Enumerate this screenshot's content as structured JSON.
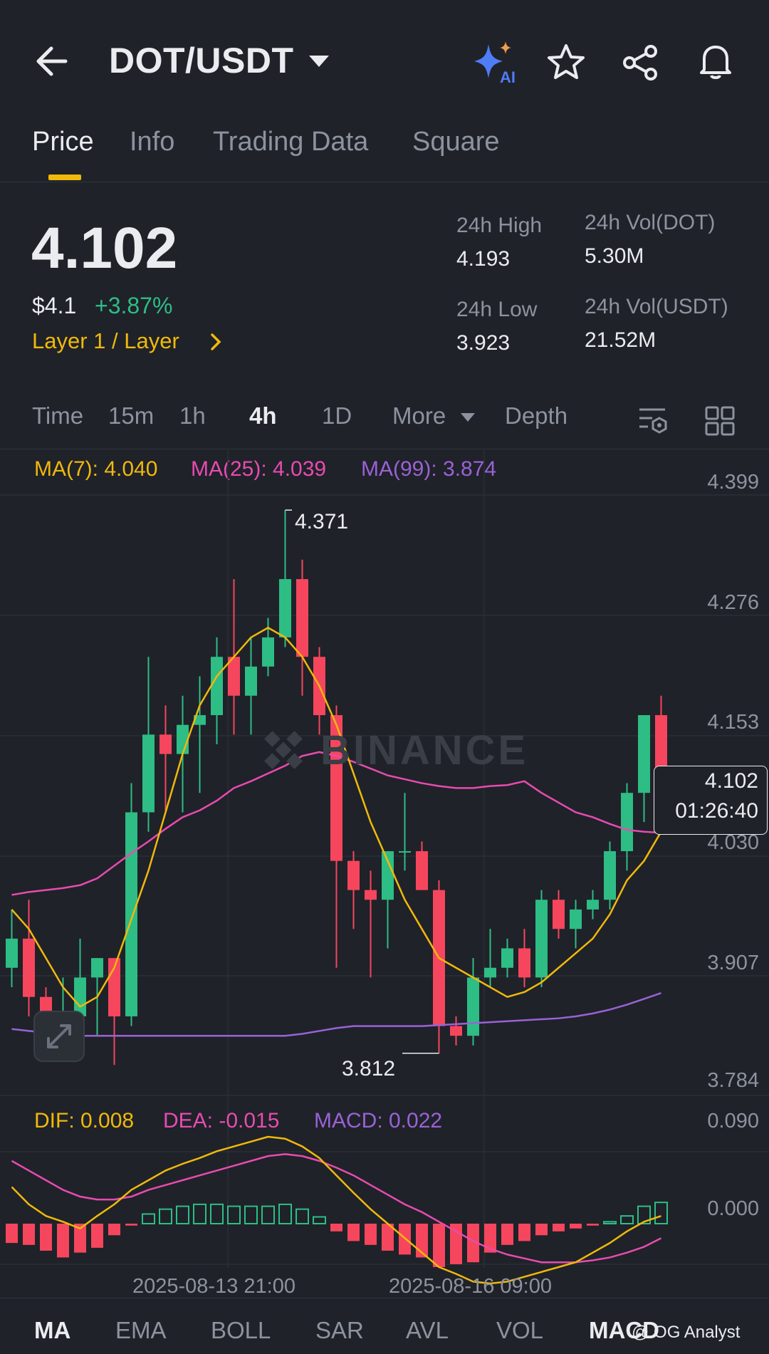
{
  "header": {
    "pair": "DOT/USDT",
    "icons": [
      "back-arrow-icon",
      "chevron-down-icon",
      "ai-sparkle-icon",
      "star-icon",
      "share-icon",
      "bell-icon"
    ]
  },
  "tabs": [
    {
      "label": "Price",
      "active": true
    },
    {
      "label": "Info",
      "active": false
    },
    {
      "label": "Trading Data",
      "active": false
    },
    {
      "label": "Square",
      "active": false
    }
  ],
  "ticker": {
    "last_price": "4.102",
    "usd_price": "$4.1",
    "change": "+3.87%",
    "category": "Layer 1 / Layer",
    "high_label": "24h High",
    "high": "4.193",
    "low_label": "24h Low",
    "low": "3.923",
    "vol_base_label": "24h Vol(DOT)",
    "vol_base": "5.30M",
    "vol_quote_label": "24h Vol(USDT)",
    "vol_quote": "21.52M"
  },
  "intervals": {
    "items": [
      "Time",
      "15m",
      "1h",
      "4h",
      "1D",
      "More",
      "Depth"
    ],
    "active": "4h"
  },
  "indicators": {
    "ma7": "MA(7): 4.040",
    "ma25": "MA(25): 4.039",
    "ma99": "MA(99): 3.874",
    "dif": "DIF: 0.008",
    "dea": "DEA: -0.015",
    "macd": "MACD: 0.022"
  },
  "chart_data": {
    "type": "candlestick",
    "price_axis": [
      "4.399",
      "4.276",
      "4.153",
      "4.030",
      "3.907",
      "3.784"
    ],
    "macd_axis": [
      "0.090",
      "0.000"
    ],
    "x_labels": [
      "2025-08-13 21:00",
      "2025-08-16 09:00"
    ],
    "high_marker": "4.371",
    "low_marker": "3.812",
    "current_price": "4.102",
    "countdown": "01:26:40",
    "watermark": "BINANCE",
    "colors": {
      "up": "#2ebd85",
      "down": "#f6465d",
      "ma7": "#f0b90b",
      "ma25": "#e84bb0",
      "ma99": "#9a62d6"
    },
    "candles": [
      {
        "o": 3.9,
        "h": 3.96,
        "l": 3.88,
        "c": 3.93
      },
      {
        "o": 3.93,
        "h": 3.97,
        "l": 3.85,
        "c": 3.87
      },
      {
        "o": 3.87,
        "h": 3.88,
        "l": 3.81,
        "c": 3.83
      },
      {
        "o": 3.83,
        "h": 3.89,
        "l": 3.81,
        "c": 3.85
      },
      {
        "o": 3.85,
        "h": 3.93,
        "l": 3.82,
        "c": 3.89
      },
      {
        "o": 3.89,
        "h": 3.91,
        "l": 3.83,
        "c": 3.91
      },
      {
        "o": 3.91,
        "h": 3.91,
        "l": 3.8,
        "c": 3.85
      },
      {
        "o": 3.85,
        "h": 4.09,
        "l": 3.84,
        "c": 4.06
      },
      {
        "o": 4.06,
        "h": 4.22,
        "l": 4.04,
        "c": 4.14
      },
      {
        "o": 4.14,
        "h": 4.17,
        "l": 4.06,
        "c": 4.12
      },
      {
        "o": 4.12,
        "h": 4.18,
        "l": 4.06,
        "c": 4.15
      },
      {
        "o": 4.15,
        "h": 4.2,
        "l": 4.08,
        "c": 4.16
      },
      {
        "o": 4.16,
        "h": 4.24,
        "l": 4.13,
        "c": 4.22
      },
      {
        "o": 4.22,
        "h": 4.3,
        "l": 4.14,
        "c": 4.18
      },
      {
        "o": 4.18,
        "h": 4.24,
        "l": 4.14,
        "c": 4.21
      },
      {
        "o": 4.21,
        "h": 4.26,
        "l": 4.2,
        "c": 4.24
      },
      {
        "o": 4.24,
        "h": 4.371,
        "l": 4.23,
        "c": 4.3
      },
      {
        "o": 4.3,
        "h": 4.32,
        "l": 4.18,
        "c": 4.22
      },
      {
        "o": 4.22,
        "h": 4.23,
        "l": 4.14,
        "c": 4.16
      },
      {
        "o": 4.16,
        "h": 4.17,
        "l": 3.9,
        "c": 4.01
      },
      {
        "o": 4.01,
        "h": 4.02,
        "l": 3.94,
        "c": 3.98
      },
      {
        "o": 3.98,
        "h": 4.0,
        "l": 3.89,
        "c": 3.97
      },
      {
        "o": 3.97,
        "h": 4.02,
        "l": 3.92,
        "c": 4.02
      },
      {
        "o": 4.02,
        "h": 4.08,
        "l": 4.0,
        "c": 4.02
      },
      {
        "o": 4.02,
        "h": 4.03,
        "l": 3.98,
        "c": 3.98
      },
      {
        "o": 3.98,
        "h": 3.99,
        "l": 3.812,
        "c": 3.84
      },
      {
        "o": 3.84,
        "h": 3.85,
        "l": 3.82,
        "c": 3.83
      },
      {
        "o": 3.83,
        "h": 3.91,
        "l": 3.82,
        "c": 3.89
      },
      {
        "o": 3.89,
        "h": 3.94,
        "l": 3.88,
        "c": 3.9
      },
      {
        "o": 3.9,
        "h": 3.93,
        "l": 3.89,
        "c": 3.92
      },
      {
        "o": 3.92,
        "h": 3.94,
        "l": 3.88,
        "c": 3.89
      },
      {
        "o": 3.89,
        "h": 3.98,
        "l": 3.88,
        "c": 3.97
      },
      {
        "o": 3.97,
        "h": 3.98,
        "l": 3.93,
        "c": 3.94
      },
      {
        "o": 3.94,
        "h": 3.97,
        "l": 3.92,
        "c": 3.96
      },
      {
        "o": 3.96,
        "h": 3.98,
        "l": 3.95,
        "c": 3.97
      },
      {
        "o": 3.97,
        "h": 4.03,
        "l": 3.96,
        "c": 4.02
      },
      {
        "o": 4.02,
        "h": 4.09,
        "l": 4.0,
        "c": 4.08
      },
      {
        "o": 4.08,
        "h": 4.16,
        "l": 4.05,
        "c": 4.16
      },
      {
        "o": 4.16,
        "h": 4.18,
        "l": 4.1,
        "c": 4.102
      }
    ],
    "ma7": [
      3.96,
      3.94,
      3.91,
      3.88,
      3.86,
      3.87,
      3.9,
      3.95,
      4.0,
      4.06,
      4.12,
      4.17,
      4.2,
      4.22,
      4.24,
      4.25,
      4.24,
      4.22,
      4.19,
      4.15,
      4.1,
      4.05,
      4.01,
      3.97,
      3.94,
      3.91,
      3.9,
      3.89,
      3.88,
      3.87,
      3.875,
      3.885,
      3.9,
      3.915,
      3.93,
      3.955,
      3.99,
      4.01,
      4.04
    ],
    "ma25": [
      3.975,
      3.978,
      3.98,
      3.982,
      3.985,
      3.992,
      4.005,
      4.018,
      4.03,
      4.043,
      4.055,
      4.062,
      4.072,
      4.085,
      4.092,
      4.1,
      4.108,
      4.118,
      4.122,
      4.118,
      4.112,
      4.105,
      4.098,
      4.094,
      4.09,
      4.087,
      4.085,
      4.085,
      4.087,
      4.088,
      4.092,
      4.08,
      4.07,
      4.06,
      4.055,
      4.048,
      4.042,
      4.04,
      4.039
    ],
    "ma99": [
      3.837,
      3.835,
      3.833,
      3.83,
      3.83,
      3.83,
      3.83,
      3.83,
      3.83,
      3.83,
      3.83,
      3.83,
      3.83,
      3.83,
      3.83,
      3.83,
      3.83,
      3.832,
      3.835,
      3.838,
      3.84,
      3.84,
      3.84,
      3.84,
      3.84,
      3.841,
      3.842,
      3.843,
      3.844,
      3.845,
      3.846,
      3.847,
      3.848,
      3.85,
      3.853,
      3.857,
      3.862,
      3.868,
      3.874
    ],
    "macd_hist": [
      -0.02,
      -0.022,
      -0.028,
      -0.035,
      -0.03,
      -0.025,
      -0.012,
      -0.002,
      0.01,
      0.015,
      0.018,
      0.02,
      0.02,
      0.018,
      0.018,
      0.018,
      0.02,
      0.015,
      0.007,
      -0.008,
      -0.018,
      -0.022,
      -0.028,
      -0.032,
      -0.035,
      -0.045,
      -0.042,
      -0.04,
      -0.03,
      -0.022,
      -0.018,
      -0.012,
      -0.008,
      -0.005,
      -0.002,
      0.002,
      0.008,
      0.018,
      0.022
    ],
    "dif": [
      0.038,
      0.02,
      0.008,
      0.002,
      -0.005,
      0.008,
      0.02,
      0.035,
      0.045,
      0.055,
      0.062,
      0.068,
      0.075,
      0.08,
      0.085,
      0.09,
      0.088,
      0.08,
      0.068,
      0.05,
      0.032,
      0.015,
      0.0,
      -0.015,
      -0.03,
      -0.045,
      -0.052,
      -0.06,
      -0.062,
      -0.06,
      -0.055,
      -0.05,
      -0.045,
      -0.04,
      -0.03,
      -0.02,
      -0.008,
      0.002,
      0.008
    ],
    "dea": [
      0.065,
      0.055,
      0.045,
      0.035,
      0.028,
      0.025,
      0.025,
      0.028,
      0.035,
      0.04,
      0.045,
      0.05,
      0.055,
      0.06,
      0.065,
      0.07,
      0.072,
      0.07,
      0.065,
      0.058,
      0.05,
      0.04,
      0.03,
      0.02,
      0.012,
      0.002,
      -0.008,
      -0.018,
      -0.026,
      -0.032,
      -0.036,
      -0.04,
      -0.04,
      -0.04,
      -0.038,
      -0.035,
      -0.03,
      -0.024,
      -0.015
    ]
  },
  "bottom_tabs": {
    "items": [
      "MA",
      "EMA",
      "BOLL",
      "SAR",
      "AVL",
      "VOL",
      "MACD"
    ],
    "active": "MA"
  },
  "credit": "@ OG Analyst"
}
